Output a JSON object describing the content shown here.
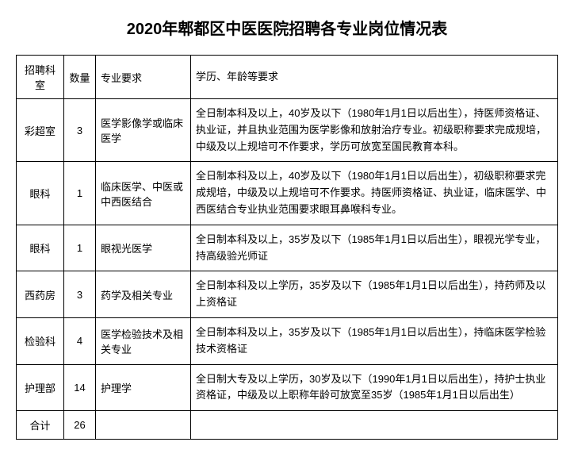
{
  "title": "2020年郫都区中医医院招聘各专业岗位情况表",
  "headers": {
    "department": "招聘科室",
    "quantity": "数量",
    "major": "专业要求",
    "requirements": "学历、年龄等要求"
  },
  "rows": [
    {
      "department": "彩超室",
      "quantity": "3",
      "major": "医学影像学或临床医学",
      "requirements": "全日制本科及以上，40岁及以下（1980年1月1日以后出生），持医师资格证、执业证，并且执业范围为医学影像和放射治疗专业。初级职称要求完成规培，中级及以上规培可不作要求，学历可放宽至国民教育本科。"
    },
    {
      "department": "眼科",
      "quantity": "1",
      "major": "临床医学、中医或中西医结合",
      "requirements": "全日制本科及以上，40岁及以下（1980年1月1日以后出生），初级职称要求完成规培，中级及以上规培可不作要求。持医师资格证、执业证，临床医学、中西医结合专业执业范围要求眼耳鼻喉科专业。"
    },
    {
      "department": "眼科",
      "quantity": "1",
      "major": "眼视光医学",
      "requirements": "全日制本科及以上，35岁及以下（1985年1月1日以后出生），眼视光学专业，持高级验光师证"
    },
    {
      "department": "西药房",
      "quantity": "3",
      "major": "药学及相关专业",
      "requirements": "全日制本科及以上学历，35岁及以下（1985年1月1日以后出生），持药师及以上资格证"
    },
    {
      "department": "检验科",
      "quantity": "4",
      "major": "医学检验技术及相关专业",
      "requirements": "全日制本科及以上，35岁及以下（1985年1月1日以后出生），持临床医学检验技术资格证"
    },
    {
      "department": "护理部",
      "quantity": "14",
      "major": "护理学",
      "requirements": "全日制大专及以上学历，30岁及以下（1990年1月1日以后出生），持护士执业资格证，中级及以上职称年龄可放宽至35岁（1985年1月1日以后出生）"
    }
  ],
  "total": {
    "label": "合计",
    "value": "26"
  },
  "style": {
    "title_fontsize": 20,
    "cell_fontsize": 13,
    "border_color": "#000000",
    "text_color": "#000000",
    "background_color": "#ffffff",
    "col_widths": {
      "department": 60,
      "quantity": 40,
      "major": 120
    }
  }
}
